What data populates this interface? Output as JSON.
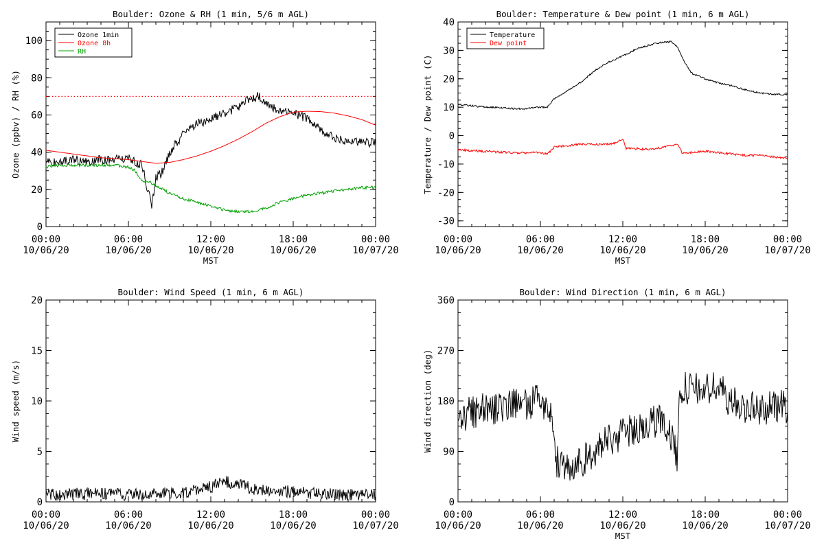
{
  "chart_data": [
    {
      "type": "line",
      "title": "Boulder: Ozone & RH (1 min, 5/6 m AGL)",
      "xlabel": "MST",
      "ylabel": "Ozone (ppbv) / RH (%)",
      "xlim": [
        "10/06/20 00:00",
        "10/07/20 00:00"
      ],
      "ylim": [
        0,
        110
      ],
      "yticks": [
        0,
        20,
        40,
        60,
        80,
        100
      ],
      "x_ticks": [
        {
          "time": "00:00",
          "date": "10/06/20"
        },
        {
          "time": "06:00",
          "date": "10/06/20"
        },
        {
          "time": "12:00",
          "date": "10/06/20"
        },
        {
          "time": "18:00",
          "date": "10/06/20"
        },
        {
          "time": "00:00",
          "date": "10/07/20"
        }
      ],
      "legend": "top-left",
      "reference_line": {
        "y": 70,
        "color": "#ff0000",
        "style": "dotted"
      },
      "series": [
        {
          "name": "Ozone 1min",
          "color": "#000000",
          "x_hours": [
            0,
            1,
            2,
            3,
            4,
            5,
            6,
            6.5,
            7,
            7.4,
            7.7,
            8,
            8.5,
            9,
            10,
            11,
            12,
            13,
            14,
            14.5,
            15,
            15.5,
            16,
            16.5,
            17,
            18,
            19,
            20,
            21,
            22,
            23,
            24
          ],
          "values": [
            35,
            35,
            36,
            35,
            36,
            36,
            37,
            35,
            33,
            20,
            12,
            26,
            30,
            40,
            50,
            55,
            58,
            61,
            64,
            67,
            69,
            70,
            66,
            64,
            63,
            61,
            58,
            52,
            48,
            46,
            45,
            45
          ],
          "noise": 2.5
        },
        {
          "name": "Ozone 8h",
          "color": "#ff0000",
          "x_hours": [
            0,
            2,
            4,
            6,
            7,
            8,
            9,
            10,
            11,
            12,
            13,
            14,
            15,
            16,
            17,
            18,
            19,
            20,
            21,
            22,
            23,
            24
          ],
          "values": [
            41,
            39,
            37,
            36,
            35,
            34,
            34.5,
            36,
            38,
            40.5,
            43.5,
            47,
            51,
            55.5,
            59,
            61.5,
            62,
            61.8,
            61,
            59.5,
            57.5,
            54.5
          ],
          "noise": 0
        },
        {
          "name": "RH",
          "color": "#00a000",
          "x_hours": [
            0,
            1,
            2,
            3,
            4,
            5,
            6,
            6.5,
            7,
            7.5,
            8,
            9,
            10,
            11,
            11.5,
            12,
            13,
            14,
            15,
            16,
            17,
            18,
            19,
            20,
            21,
            22,
            23,
            24
          ],
          "values": [
            32,
            33,
            33,
            33,
            33,
            33,
            32,
            30,
            24,
            24,
            22,
            18,
            15,
            13,
            12,
            11,
            9,
            8,
            8,
            10,
            13,
            15,
            17,
            18,
            19,
            20,
            21,
            21
          ],
          "noise": 0.8
        }
      ]
    },
    {
      "type": "line",
      "title": "Boulder: Temperature & Dew point (1 min, 6 m AGL)",
      "xlabel": "MST",
      "ylabel": "Temperature / Dew point (C)",
      "xlim": [
        "10/06/20 00:00",
        "10/07/20 00:00"
      ],
      "ylim": [
        -32,
        40
      ],
      "yticks": [
        -30,
        -20,
        -10,
        0,
        10,
        20,
        30,
        40
      ],
      "x_ticks": [
        {
          "time": "00:00",
          "date": "10/06/20"
        },
        {
          "time": "06:00",
          "date": "10/06/20"
        },
        {
          "time": "12:00",
          "date": "10/06/20"
        },
        {
          "time": "18:00",
          "date": "10/06/20"
        },
        {
          "time": "00:00",
          "date": "10/07/20"
        }
      ],
      "legend": "top-left",
      "series": [
        {
          "name": "Temperature",
          "color": "#000000",
          "x_hours": [
            0,
            1,
            2,
            3,
            4,
            5,
            6,
            6.5,
            7,
            8,
            9,
            10,
            11,
            12,
            13,
            14,
            15,
            15.5,
            16,
            16.5,
            17,
            18,
            19,
            20,
            21,
            22,
            23,
            24
          ],
          "values": [
            11,
            10.5,
            10,
            10,
            9.5,
            9.5,
            10,
            10,
            13,
            16,
            19,
            23,
            26,
            28,
            30.5,
            32,
            33,
            33,
            31,
            26,
            22,
            20,
            18.5,
            17.5,
            16,
            15,
            14.5,
            14.5
          ],
          "noise": 0.3
        },
        {
          "name": "Dew point",
          "color": "#ff0000",
          "x_hours": [
            0,
            2,
            4,
            6,
            6.5,
            7,
            8,
            9,
            10,
            11,
            11.5,
            12,
            12.2,
            13,
            14,
            15,
            16,
            16.3,
            17,
            18,
            19,
            20,
            21,
            22,
            23,
            24
          ],
          "values": [
            -5,
            -5.5,
            -6,
            -6,
            -6.5,
            -4,
            -3.5,
            -3,
            -3,
            -3,
            -2.5,
            -1,
            -4.5,
            -4.5,
            -5,
            -4,
            -3,
            -6,
            -6,
            -5.5,
            -6,
            -6.5,
            -7,
            -7,
            -7.5,
            -8
          ],
          "noise": 0.4
        }
      ]
    },
    {
      "type": "line",
      "title": "Boulder: Wind Speed (1 min, 6 m AGL)",
      "xlabel": "",
      "ylabel": "Wind speed (m/s)",
      "xlim": [
        "10/06/20 00:00",
        "10/07/20 00:00"
      ],
      "ylim": [
        0,
        20
      ],
      "yticks": [
        0,
        5,
        10,
        15,
        20
      ],
      "x_ticks": [
        {
          "time": "00:00",
          "date": "10/06/20"
        },
        {
          "time": "06:00",
          "date": "10/06/20"
        },
        {
          "time": "12:00",
          "date": "10/06/20"
        },
        {
          "time": "18:00",
          "date": "10/06/20"
        },
        {
          "time": "00:00",
          "date": "10/07/20"
        }
      ],
      "series": [
        {
          "name": "",
          "color": "#000000",
          "x_hours": [
            0,
            2,
            4,
            6,
            8,
            10,
            11,
            12,
            13,
            14,
            15,
            16,
            18,
            20,
            22,
            24
          ],
          "values": [
            0.7,
            0.8,
            0.8,
            0.7,
            0.8,
            0.9,
            1.2,
            1.5,
            2.0,
            1.8,
            1.3,
            1.2,
            1.0,
            0.8,
            0.7,
            0.7
          ],
          "noise": 0.6
        }
      ]
    },
    {
      "type": "line",
      "title": "Boulder: Wind Direction (1 min, 6 m AGL)",
      "xlabel": "MST",
      "ylabel": "Wind direction (deg)",
      "xlim": [
        "10/06/20 00:00",
        "10/07/20 00:00"
      ],
      "ylim": [
        0,
        360
      ],
      "yticks": [
        0,
        90,
        180,
        270,
        360
      ],
      "x_ticks": [
        {
          "time": "00:00",
          "date": "10/06/20"
        },
        {
          "time": "06:00",
          "date": "10/06/20"
        },
        {
          "time": "12:00",
          "date": "10/06/20"
        },
        {
          "time": "18:00",
          "date": "10/06/20"
        },
        {
          "time": "00:00",
          "date": "10/07/20"
        }
      ],
      "series": [
        {
          "name": "",
          "color": "#000000",
          "x_hours": [
            0,
            1,
            2,
            3,
            4,
            5,
            6,
            6.8,
            7.2,
            8,
            9,
            10,
            11,
            12,
            13,
            14,
            15,
            16,
            16.1,
            17,
            18,
            19,
            20,
            21,
            22,
            23,
            24
          ],
          "values": [
            150,
            160,
            165,
            170,
            175,
            175,
            180,
            170,
            70,
            60,
            70,
            90,
            110,
            120,
            130,
            140,
            150,
            80,
            205,
            200,
            200,
            205,
            175,
            170,
            165,
            170,
            170
          ],
          "noise": 30
        }
      ]
    }
  ]
}
